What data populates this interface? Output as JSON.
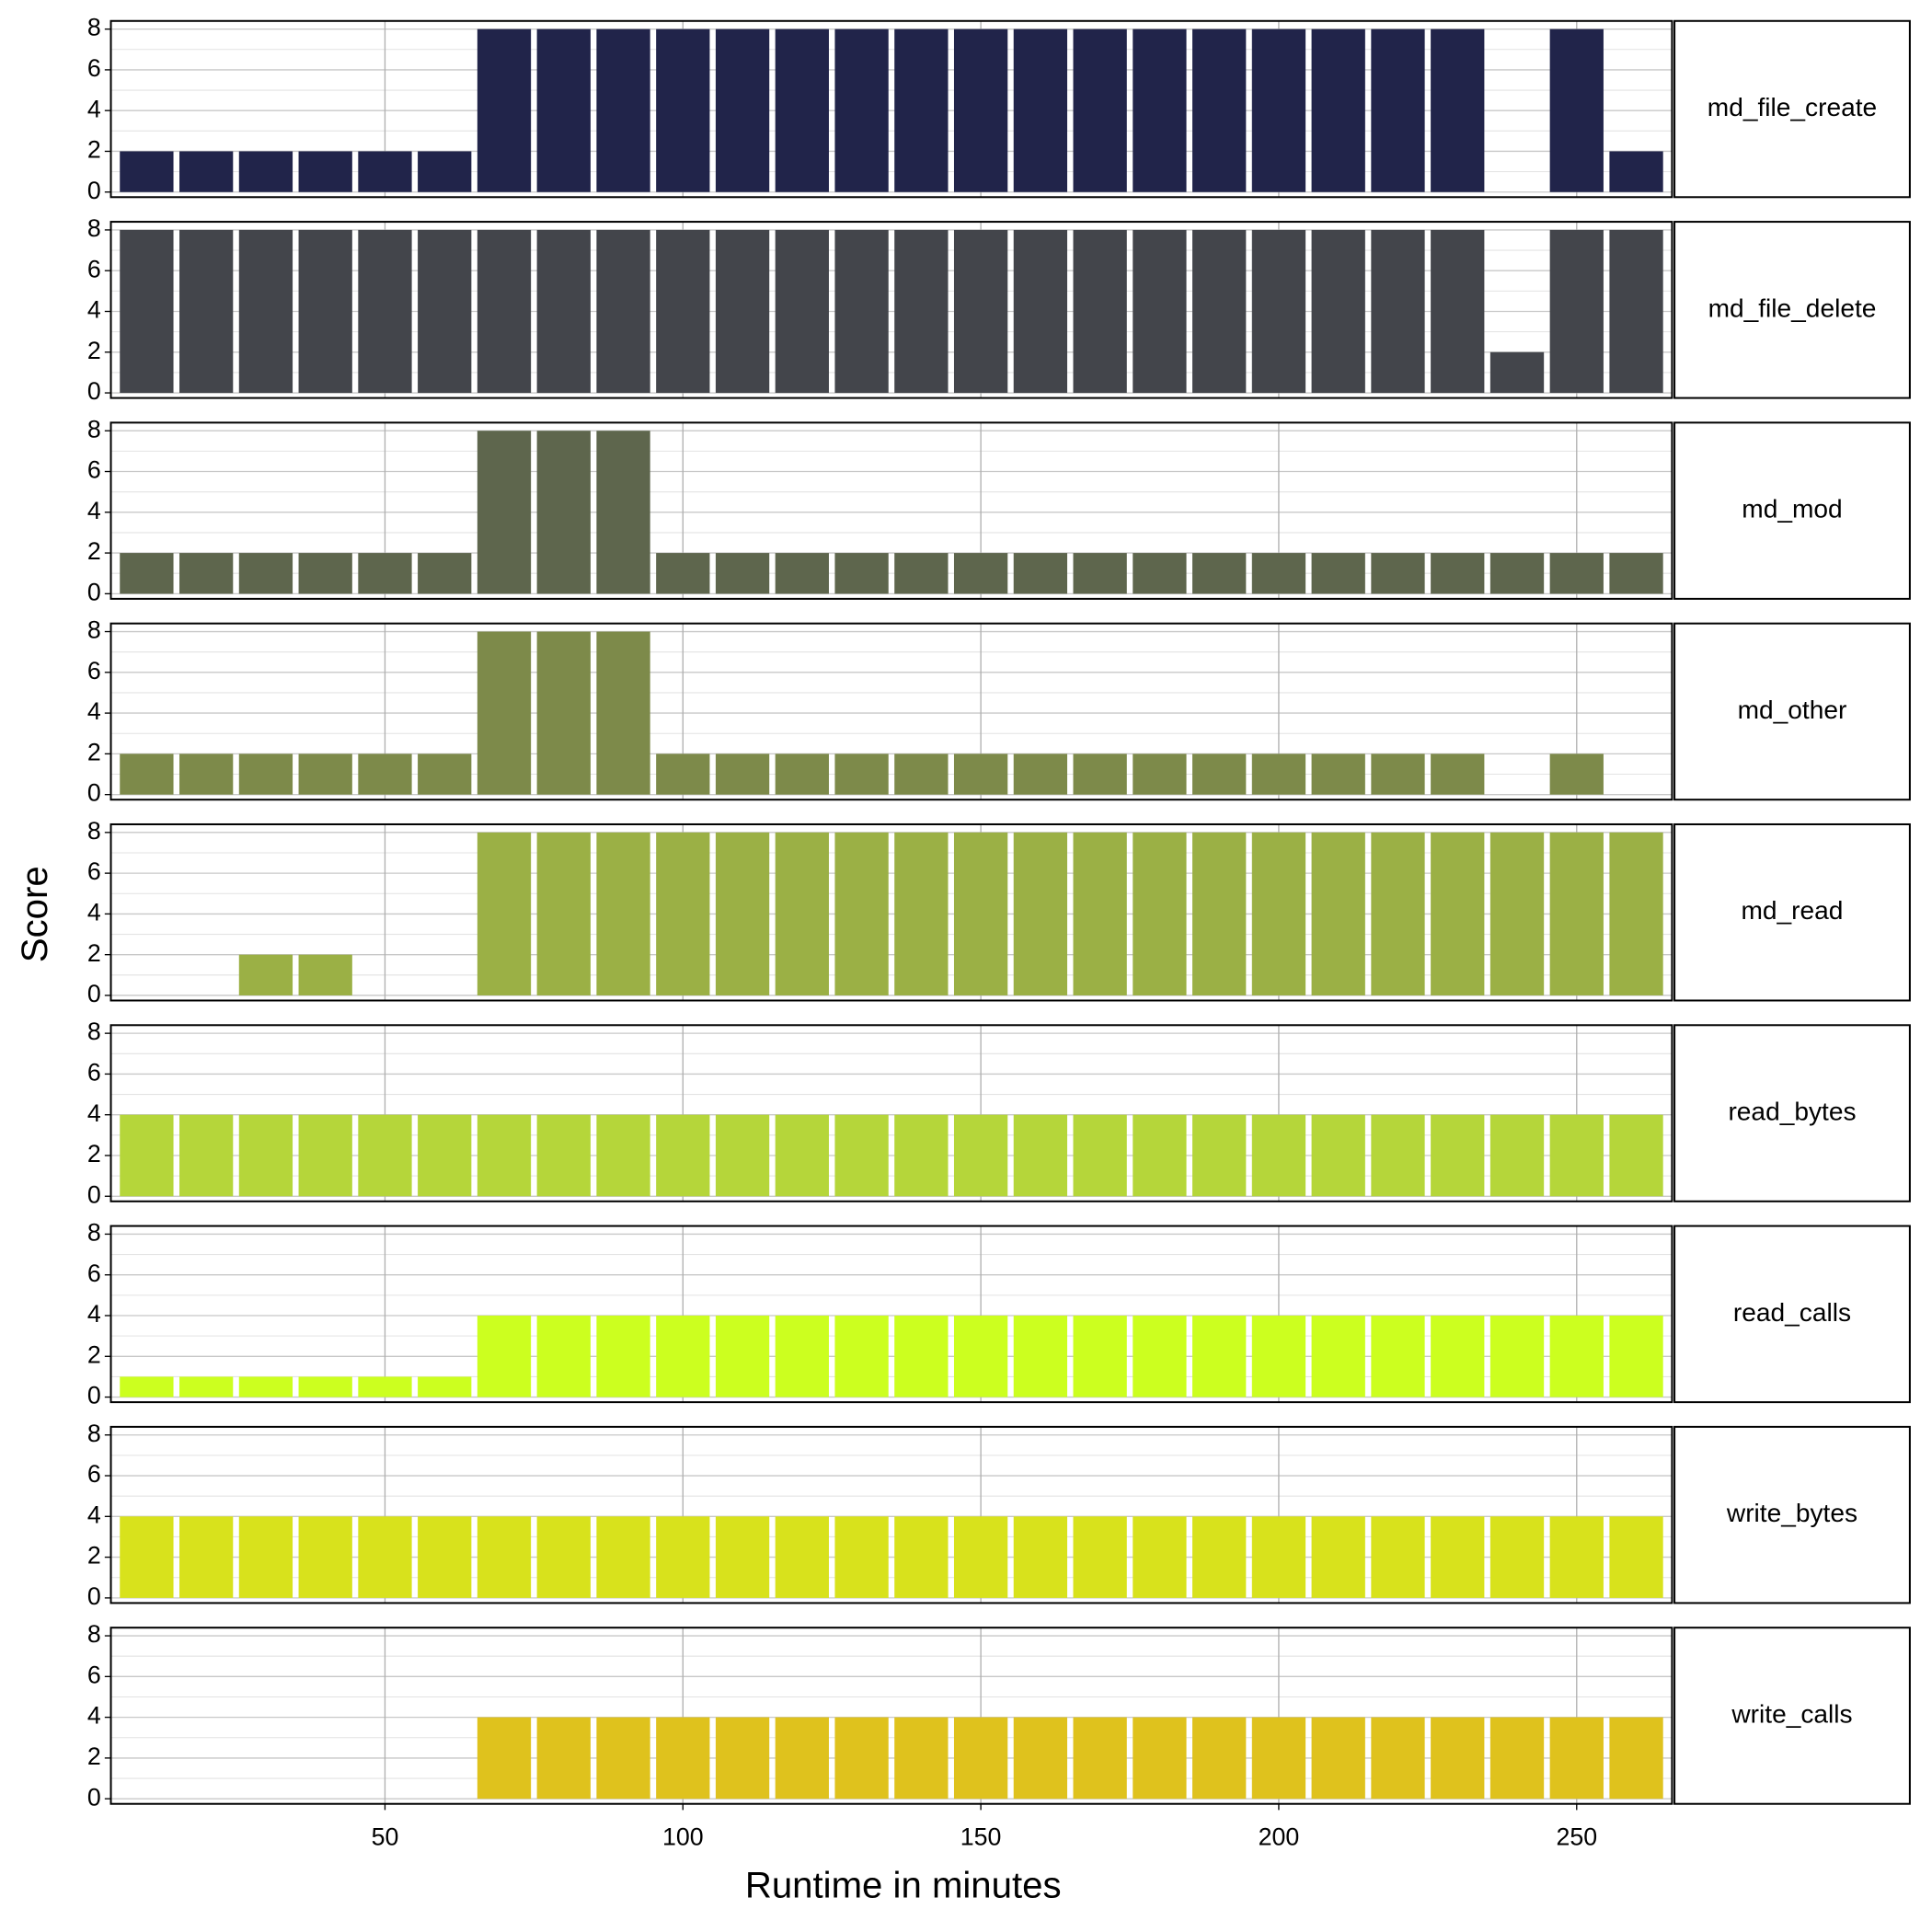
{
  "chart_data": {
    "type": "bar",
    "xlabel": "Runtime in minutes",
    "ylabel": "Score",
    "x": [
      10,
      20,
      30,
      40,
      50,
      60,
      70,
      80,
      90,
      100,
      110,
      120,
      130,
      140,
      150,
      160,
      170,
      180,
      190,
      200,
      210,
      220,
      230,
      240,
      250,
      260
    ],
    "xlim": [
      4,
      266
    ],
    "xticks": [
      50,
      100,
      150,
      200,
      250
    ],
    "ylim": [
      -0.25,
      8.4
    ],
    "yticks": [
      0,
      2,
      4,
      6,
      8
    ],
    "yminor": [
      1,
      3,
      5,
      7
    ],
    "grid": true,
    "series": [
      {
        "name": "md_file_create",
        "color": "#21244a",
        "values": [
          2,
          2,
          2,
          2,
          2,
          2,
          8,
          8,
          8,
          8,
          8,
          8,
          8,
          8,
          8,
          8,
          8,
          8,
          8,
          8,
          8,
          8,
          8,
          0,
          8,
          2
        ]
      },
      {
        "name": "md_file_delete",
        "color": "#43454b",
        "values": [
          8,
          8,
          8,
          8,
          8,
          8,
          8,
          8,
          8,
          8,
          8,
          8,
          8,
          8,
          8,
          8,
          8,
          8,
          8,
          8,
          8,
          8,
          8,
          2,
          8,
          8
        ]
      },
      {
        "name": "md_mod",
        "color": "#5e664d",
        "values": [
          2,
          2,
          2,
          2,
          2,
          2,
          8,
          8,
          8,
          2,
          2,
          2,
          2,
          2,
          2,
          2,
          2,
          2,
          2,
          2,
          2,
          2,
          2,
          2,
          2,
          2
        ]
      },
      {
        "name": "md_other",
        "color": "#7d8a4a",
        "values": [
          2,
          2,
          2,
          2,
          2,
          2,
          8,
          8,
          8,
          2,
          2,
          2,
          2,
          2,
          2,
          2,
          2,
          2,
          2,
          2,
          2,
          2,
          2,
          0,
          2,
          0
        ]
      },
      {
        "name": "md_read",
        "color": "#9bb045",
        "values": [
          0,
          0,
          2,
          2,
          0,
          0,
          8,
          8,
          8,
          8,
          8,
          8,
          8,
          8,
          8,
          8,
          8,
          8,
          8,
          8,
          8,
          8,
          8,
          8,
          8,
          8
        ]
      },
      {
        "name": "read_bytes",
        "color": "#b5d63a",
        "values": [
          4,
          4,
          4,
          4,
          4,
          4,
          4,
          4,
          4,
          4,
          4,
          4,
          4,
          4,
          4,
          4,
          4,
          4,
          4,
          4,
          4,
          4,
          4,
          4,
          4,
          4
        ]
      },
      {
        "name": "read_calls",
        "color": "#ccff1f",
        "values": [
          1,
          1,
          1,
          1,
          1,
          1,
          4,
          4,
          4,
          4,
          4,
          4,
          4,
          4,
          4,
          4,
          4,
          4,
          4,
          4,
          4,
          4,
          4,
          4,
          4,
          4
        ]
      },
      {
        "name": "write_bytes",
        "color": "#d8e21c",
        "values": [
          4,
          4,
          4,
          4,
          4,
          4,
          4,
          4,
          4,
          4,
          4,
          4,
          4,
          4,
          4,
          4,
          4,
          4,
          4,
          4,
          4,
          4,
          4,
          4,
          4,
          4
        ]
      },
      {
        "name": "write_calls",
        "color": "#dfc21d",
        "values": [
          0,
          0,
          0,
          0,
          0,
          0,
          4,
          4,
          4,
          4,
          4,
          4,
          4,
          4,
          4,
          4,
          4,
          4,
          4,
          4,
          4,
          4,
          4,
          4,
          4,
          4
        ]
      }
    ]
  }
}
